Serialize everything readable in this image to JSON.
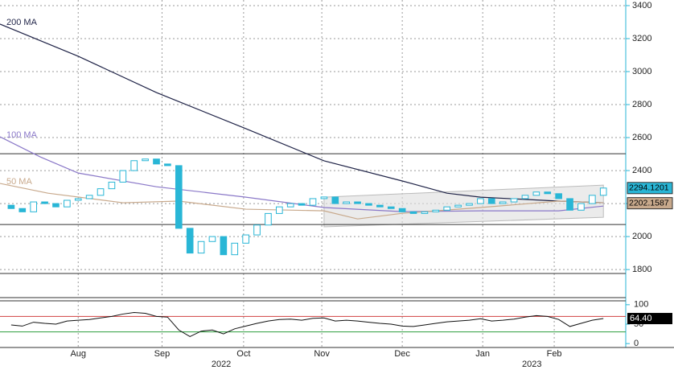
{
  "chart_data": {
    "type": "candlestick",
    "x": [
      1,
      2,
      3,
      4,
      5,
      6,
      7,
      8,
      9,
      10,
      11,
      12,
      13,
      14,
      15,
      16,
      17,
      18,
      19,
      20,
      21,
      22,
      23,
      24,
      25,
      26,
      27,
      28,
      29,
      30,
      31,
      32,
      33,
      34,
      35,
      36,
      37,
      38,
      39,
      40,
      41,
      42,
      43,
      44,
      45,
      46,
      47,
      48,
      49,
      50,
      51,
      52,
      53,
      54
    ],
    "open": [
      2190,
      2170,
      2150,
      2210,
      2200,
      2180,
      2220,
      2230,
      2250,
      2290,
      2330,
      2400,
      2460,
      2470,
      2440,
      2430,
      2050,
      1900,
      1970,
      2000,
      1890,
      1960,
      2010,
      2070,
      2140,
      2180,
      2200,
      2190,
      2230,
      2240,
      2200,
      2210,
      2200,
      2190,
      2180,
      2170,
      2150,
      2140,
      2150,
      2160,
      2180,
      2190,
      2200,
      2230,
      2200,
      2210,
      2230,
      2250,
      2270,
      2260,
      2230,
      2160,
      2200,
      2250
    ],
    "close": [
      2170,
      2150,
      2210,
      2200,
      2180,
      2220,
      2230,
      2250,
      2290,
      2330,
      2400,
      2460,
      2470,
      2440,
      2430,
      2050,
      1900,
      1970,
      2000,
      1890,
      1960,
      2010,
      2070,
      2140,
      2180,
      2200,
      2190,
      2230,
      2240,
      2200,
      2210,
      2200,
      2190,
      2180,
      2170,
      2150,
      2140,
      2150,
      2160,
      2180,
      2190,
      2200,
      2230,
      2200,
      2210,
      2230,
      2250,
      2270,
      2260,
      2230,
      2160,
      2200,
      2250,
      2294.1201
    ],
    "color": "#29b6d6",
    "xlim": [
      0,
      56
    ],
    "ylim": [
      1630,
      3434
    ],
    "yticks": [
      1800,
      2000,
      2200,
      2400,
      2600,
      2800,
      3000,
      3200,
      3400
    ],
    "xticks": [
      {
        "value": 7,
        "label": "Aug"
      },
      {
        "value": 14.5,
        "label": "Sep"
      },
      {
        "value": 21.8,
        "label": "Oct"
      },
      {
        "value": 28.8,
        "label": "Nov"
      },
      {
        "value": 36,
        "label": "Dec"
      },
      {
        "value": 43.2,
        "label": "Jan"
      },
      {
        "value": 49.6,
        "label": "Feb"
      }
    ],
    "year_ticks": [
      {
        "value": 19.8,
        "label": "2022"
      },
      {
        "value": 47.6,
        "label": "2023"
      }
    ],
    "grid": true,
    "levels": [
      2502,
      2073,
      1776
    ],
    "channel": {
      "x": [
        29,
        54
      ],
      "upper": [
        2239,
        2312
      ],
      "lower": [
        2059,
        2117
      ]
    },
    "moving_averages": [
      {
        "name": "200 MA",
        "color": "#1f2347",
        "x": [
          0,
          7,
          14,
          22,
          29,
          36,
          40,
          43,
          50,
          54
        ],
        "values": [
          3288,
          3093,
          2873,
          2654,
          2459,
          2337,
          2263,
          2239,
          2215,
          2205
        ]
      },
      {
        "name": "100 MA",
        "color": "#8a78c8",
        "x": [
          0,
          3.6,
          7,
          14,
          22,
          29,
          36,
          43,
          50,
          54
        ],
        "values": [
          2605,
          2483,
          2385,
          2302,
          2239,
          2176,
          2151,
          2156,
          2156,
          2185
        ]
      },
      {
        "name": "50 MA",
        "color": "#c8a98c",
        "x": [
          0,
          4.3,
          11,
          16,
          22,
          29,
          32,
          36,
          43,
          50,
          54
        ],
        "values": [
          2322,
          2263,
          2205,
          2215,
          2166,
          2156,
          2107,
          2141,
          2176,
          2215,
          2205
        ]
      }
    ],
    "last_price": 2294.1201,
    "ma_price": 2202.1587,
    "rsi": {
      "values": [
        48,
        45,
        55,
        52,
        50,
        58,
        60,
        62,
        66,
        70,
        76,
        80,
        78,
        70,
        68,
        35,
        18,
        32,
        35,
        25,
        38,
        45,
        52,
        58,
        62,
        63,
        60,
        65,
        66,
        58,
        60,
        58,
        55,
        52,
        50,
        45,
        44,
        48,
        52,
        56,
        58,
        60,
        64,
        58,
        60,
        63,
        68,
        72,
        70,
        62,
        44,
        52,
        60,
        64.4
      ],
      "value_label": "64.40",
      "ylim": [
        -10,
        110
      ],
      "yticks": [
        0,
        50,
        100
      ],
      "overbought": 70,
      "oversold": 30
    }
  }
}
